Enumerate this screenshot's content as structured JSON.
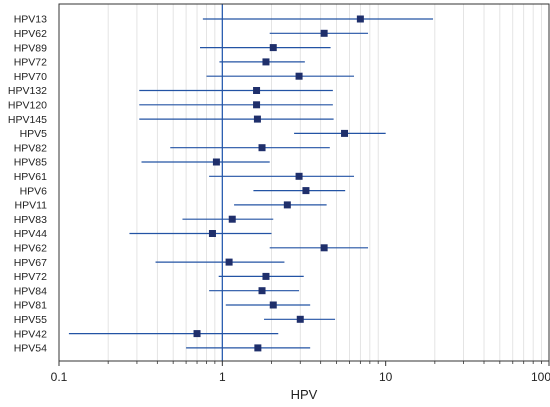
{
  "chart_data": {
    "type": "forest",
    "xlabel": "HPV",
    "xscale": "log",
    "xlim": [
      0.1,
      100
    ],
    "xticks": [
      {
        "value": 0.1,
        "label": "0.1"
      },
      {
        "value": 1,
        "label": "1"
      },
      {
        "value": 10,
        "label": "10"
      },
      {
        "value": 100,
        "label": "100"
      }
    ],
    "reference_line": 1,
    "grid": "vertical minor lines",
    "colors": {
      "ci_line": "#2353a4",
      "marker": "#1f2f6b",
      "reference": "#2a5db0",
      "grid": "#dddddd",
      "frame": "#333333"
    },
    "rows": [
      {
        "label": "HPV13",
        "est": 7.0,
        "low": 0.76,
        "high": 19.5
      },
      {
        "label": "HPV62",
        "est": 4.2,
        "low": 1.95,
        "high": 7.8
      },
      {
        "label": "HPV89",
        "est": 2.05,
        "low": 0.73,
        "high": 4.6
      },
      {
        "label": "HPV72",
        "est": 1.85,
        "low": 0.96,
        "high": 3.2
      },
      {
        "label": "HPV70",
        "est": 2.95,
        "low": 0.8,
        "high": 6.4
      },
      {
        "label": "HPV132",
        "est": 1.62,
        "low": 0.31,
        "high": 4.75
      },
      {
        "label": "HPV120",
        "est": 1.62,
        "low": 0.31,
        "high": 4.75
      },
      {
        "label": "HPV145",
        "est": 1.64,
        "low": 0.31,
        "high": 4.8
      },
      {
        "label": "HPV5",
        "est": 5.6,
        "low": 2.75,
        "high": 10.0
      },
      {
        "label": "HPV82",
        "est": 1.75,
        "low": 0.48,
        "high": 4.55
      },
      {
        "label": "HPV85",
        "est": 0.92,
        "low": 0.32,
        "high": 1.95
      },
      {
        "label": "HPV61",
        "est": 2.95,
        "low": 0.83,
        "high": 6.4
      },
      {
        "label": "HPV6",
        "est": 3.25,
        "low": 1.55,
        "high": 5.65
      },
      {
        "label": "HPV11",
        "est": 2.5,
        "low": 1.18,
        "high": 4.35
      },
      {
        "label": "HPV83",
        "est": 1.15,
        "low": 0.57,
        "high": 2.05
      },
      {
        "label": "HPV44",
        "est": 0.87,
        "low": 0.27,
        "high": 2.0
      },
      {
        "label": "HPV62",
        "est": 4.2,
        "low": 1.95,
        "high": 7.8
      },
      {
        "label": "HPV67",
        "est": 1.1,
        "low": 0.39,
        "high": 2.4
      },
      {
        "label": "HPV72",
        "est": 1.85,
        "low": 0.95,
        "high": 3.15
      },
      {
        "label": "HPV84",
        "est": 1.75,
        "low": 0.83,
        "high": 2.95
      },
      {
        "label": "HPV81",
        "est": 2.05,
        "low": 1.05,
        "high": 3.45
      },
      {
        "label": "HPV55",
        "est": 3.0,
        "low": 1.8,
        "high": 4.9
      },
      {
        "label": "HPV42",
        "est": 0.7,
        "low": 0.115,
        "high": 2.2
      },
      {
        "label": "HPV54",
        "est": 1.65,
        "low": 0.6,
        "high": 3.45
      }
    ]
  }
}
